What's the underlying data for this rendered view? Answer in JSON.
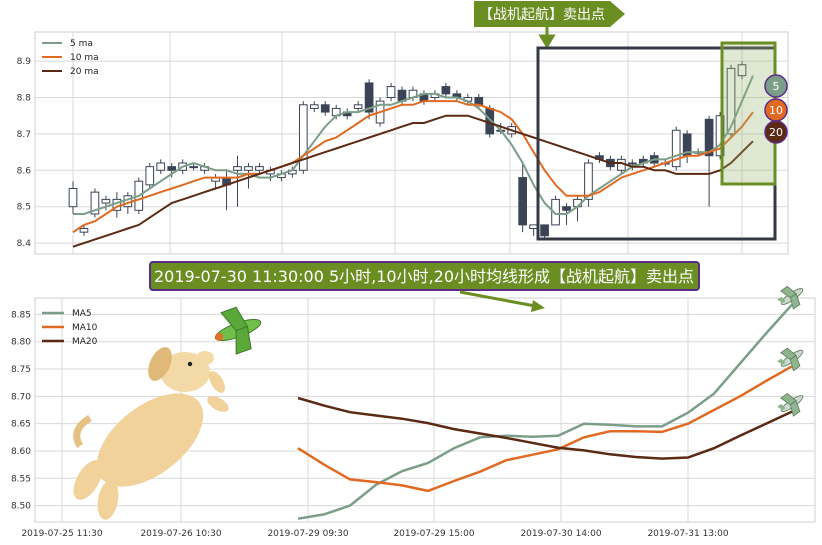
{
  "top_tag": "【战机起航】卖出点",
  "banner": "2019-07-30 11:30:00 5小时,10小时,20小时均线形成【战机起航】卖出点",
  "colors": {
    "ma5": "#7a9e87",
    "ma10": "#e06a22",
    "ma20": "#5a2a14",
    "tag_bg": "#6b8e23",
    "banner_bg": "#6b8e23",
    "banner_border": "#5a2d82",
    "candle_down": "#3a4456",
    "box": "#333a44"
  },
  "badges": [
    "5",
    "10",
    "20"
  ],
  "icons": [
    "dog-illustration",
    "airplane-icon",
    "airplane-icon",
    "airplane-icon",
    "airplane-icon"
  ],
  "chart_data": [
    {
      "type": "candlestick",
      "ylim": [
        8.37,
        8.98
      ],
      "y_ticks": [
        "8.4",
        "8.5",
        "8.6",
        "8.7",
        "8.8",
        "8.9"
      ],
      "legend": [
        "5 ma",
        "10 ma",
        "20 ma"
      ],
      "legend_position": "top-left",
      "candles": [
        [
          8.5,
          8.55,
          8.48,
          8.57
        ],
        [
          8.43,
          8.44,
          8.42,
          8.45
        ],
        [
          8.48,
          8.54,
          8.47,
          8.55
        ],
        [
          8.51,
          8.52,
          8.49,
          8.53
        ],
        [
          8.49,
          8.52,
          8.47,
          8.54
        ],
        [
          8.5,
          8.53,
          8.48,
          8.54
        ],
        [
          8.49,
          8.57,
          8.48,
          8.58
        ],
        [
          8.56,
          8.61,
          8.55,
          8.62
        ],
        [
          8.6,
          8.62,
          8.59,
          8.63
        ],
        [
          8.61,
          8.6,
          8.58,
          8.62
        ],
        [
          8.6,
          8.62,
          8.59,
          8.63
        ],
        [
          8.61,
          8.61,
          8.6,
          8.62
        ],
        [
          8.6,
          8.61,
          8.59,
          8.62
        ],
        [
          8.57,
          8.58,
          8.55,
          8.59
        ],
        [
          8.58,
          8.56,
          8.49,
          8.6
        ],
        [
          8.6,
          8.61,
          8.5,
          8.64
        ],
        [
          8.6,
          8.61,
          8.55,
          8.62
        ],
        [
          8.6,
          8.61,
          8.59,
          8.62
        ],
        [
          8.59,
          8.6,
          8.57,
          8.61
        ],
        [
          8.58,
          8.59,
          8.57,
          8.6
        ],
        [
          8.59,
          8.6,
          8.58,
          8.61
        ],
        [
          8.6,
          8.78,
          8.59,
          8.79
        ],
        [
          8.77,
          8.78,
          8.76,
          8.79
        ],
        [
          8.78,
          8.76,
          8.75,
          8.79
        ],
        [
          8.75,
          8.77,
          8.74,
          8.78
        ],
        [
          8.76,
          8.75,
          8.74,
          8.77
        ],
        [
          8.77,
          8.78,
          8.76,
          8.79
        ],
        [
          8.84,
          8.76,
          8.74,
          8.85
        ],
        [
          8.73,
          8.79,
          8.72,
          8.8
        ],
        [
          8.8,
          8.83,
          8.79,
          8.84
        ],
        [
          8.82,
          8.79,
          8.78,
          8.83
        ],
        [
          8.8,
          8.82,
          8.79,
          8.83
        ],
        [
          8.81,
          8.79,
          8.78,
          8.82
        ],
        [
          8.8,
          8.81,
          8.79,
          8.82
        ],
        [
          8.83,
          8.81,
          8.8,
          8.84
        ],
        [
          8.81,
          8.8,
          8.79,
          8.82
        ],
        [
          8.79,
          8.8,
          8.78,
          8.81
        ],
        [
          8.8,
          8.78,
          8.77,
          8.81
        ],
        [
          8.77,
          8.7,
          8.69,
          8.78
        ],
        [
          8.71,
          8.71,
          8.7,
          8.73
        ],
        [
          8.7,
          8.72,
          8.69,
          8.73
        ],
        [
          8.58,
          8.45,
          8.43,
          8.62
        ],
        [
          8.44,
          8.45,
          8.42,
          8.45
        ],
        [
          8.45,
          8.42,
          8.41,
          8.45
        ],
        [
          8.45,
          8.52,
          8.45,
          8.53
        ],
        [
          8.5,
          8.49,
          8.45,
          8.51
        ],
        [
          8.5,
          8.52,
          8.46,
          8.53
        ],
        [
          8.52,
          8.62,
          8.5,
          8.63
        ],
        [
          8.64,
          8.63,
          8.62,
          8.65
        ],
        [
          8.63,
          8.61,
          8.6,
          8.64
        ],
        [
          8.6,
          8.63,
          8.59,
          8.64
        ],
        [
          8.62,
          8.62,
          8.6,
          8.63
        ],
        [
          8.63,
          8.62,
          8.61,
          8.64
        ],
        [
          8.64,
          8.62,
          8.61,
          8.65
        ],
        [
          8.62,
          8.62,
          8.61,
          8.63
        ],
        [
          8.61,
          8.71,
          8.6,
          8.72
        ],
        [
          8.7,
          8.64,
          8.62,
          8.71
        ],
        [
          8.65,
          8.65,
          8.64,
          8.66
        ],
        [
          8.74,
          8.64,
          8.5,
          8.75
        ],
        [
          8.64,
          8.75,
          8.63,
          8.76
        ],
        [
          8.7,
          8.88,
          8.69,
          8.89
        ],
        [
          8.86,
          8.89,
          8.85,
          8.9
        ]
      ],
      "series": [
        {
          "name": "5 ma",
          "values": [
            8.48,
            8.48,
            8.49,
            8.5,
            8.51,
            8.52,
            8.53,
            8.55,
            8.57,
            8.59,
            8.61,
            8.62,
            8.61,
            8.6,
            8.6,
            8.59,
            8.59,
            8.58,
            8.58,
            8.59,
            8.6,
            8.64,
            8.68,
            8.72,
            8.75,
            8.76,
            8.76,
            8.77,
            8.78,
            8.78,
            8.79,
            8.8,
            8.81,
            8.81,
            8.8,
            8.8,
            8.79,
            8.77,
            8.74,
            8.71,
            8.67,
            8.62,
            8.56,
            8.51,
            8.48,
            8.48,
            8.5,
            8.53,
            8.55,
            8.57,
            8.59,
            8.61,
            8.62,
            8.63,
            8.63,
            8.64,
            8.65,
            8.65,
            8.65,
            8.67,
            8.72,
            8.79,
            8.86
          ]
        },
        {
          "name": "10 ma",
          "values": [
            8.43,
            8.45,
            8.46,
            8.48,
            8.5,
            8.51,
            8.52,
            8.53,
            8.54,
            8.55,
            8.56,
            8.57,
            8.58,
            8.58,
            8.58,
            8.58,
            8.59,
            8.59,
            8.6,
            8.61,
            8.62,
            8.64,
            8.66,
            8.68,
            8.69,
            8.71,
            8.73,
            8.75,
            8.76,
            8.77,
            8.78,
            8.78,
            8.79,
            8.79,
            8.79,
            8.79,
            8.78,
            8.78,
            8.77,
            8.76,
            8.74,
            8.7,
            8.65,
            8.6,
            8.56,
            8.53,
            8.53,
            8.53,
            8.54,
            8.56,
            8.58,
            8.59,
            8.6,
            8.61,
            8.62,
            8.63,
            8.64,
            8.64,
            8.65,
            8.66,
            8.69,
            8.72,
            8.76
          ]
        },
        {
          "name": "20 ma",
          "values": [
            8.39,
            8.4,
            8.41,
            8.42,
            8.43,
            8.44,
            8.45,
            8.47,
            8.49,
            8.51,
            8.52,
            8.53,
            8.54,
            8.55,
            8.56,
            8.57,
            8.58,
            8.59,
            8.6,
            8.61,
            8.62,
            8.63,
            8.64,
            8.65,
            8.66,
            8.67,
            8.68,
            8.69,
            8.7,
            8.71,
            8.72,
            8.73,
            8.73,
            8.74,
            8.75,
            8.75,
            8.75,
            8.74,
            8.73,
            8.72,
            8.71,
            8.7,
            8.69,
            8.68,
            8.67,
            8.66,
            8.65,
            8.64,
            8.63,
            8.62,
            8.62,
            8.61,
            8.61,
            8.6,
            8.6,
            8.59,
            8.59,
            8.59,
            8.59,
            8.6,
            8.62,
            8.65,
            8.68
          ]
        }
      ]
    },
    {
      "type": "line",
      "ylim": [
        8.47,
        8.88
      ],
      "y_ticks": [
        "8.50",
        "8.55",
        "8.60",
        "8.65",
        "8.70",
        "8.75",
        "8.80",
        "8.85"
      ],
      "x_ticks": [
        "2019-07-25 11:30",
        "2019-07-26 10:30",
        "2019-07-29 09:30",
        "2019-07-29 15:00",
        "2019-07-30 14:00",
        "2019-07-31 13:00"
      ],
      "legend": [
        "MA5",
        "MA10",
        "MA20"
      ],
      "legend_position": "top-left",
      "series": [
        {
          "name": "MA5",
          "values": [
            8.476,
            8.484,
            8.5,
            8.538,
            8.563,
            8.578,
            8.605,
            8.625,
            8.628,
            8.626,
            8.628,
            8.65,
            8.648,
            8.645,
            8.645,
            8.67,
            8.705,
            8.76,
            8.815,
            8.868
          ]
        },
        {
          "name": "MA10",
          "values": [
            8.605,
            8.575,
            8.548,
            8.543,
            8.537,
            8.527,
            8.545,
            8.562,
            8.583,
            8.593,
            8.603,
            8.625,
            8.636,
            8.636,
            8.635,
            8.65,
            8.675,
            8.7,
            8.728,
            8.755
          ]
        },
        {
          "name": "MA20",
          "values": [
            8.697,
            8.683,
            8.671,
            8.665,
            8.659,
            8.651,
            8.64,
            8.632,
            8.624,
            8.615,
            8.606,
            8.601,
            8.594,
            8.589,
            8.586,
            8.588,
            8.605,
            8.628,
            8.65,
            8.672
          ]
        }
      ]
    }
  ]
}
